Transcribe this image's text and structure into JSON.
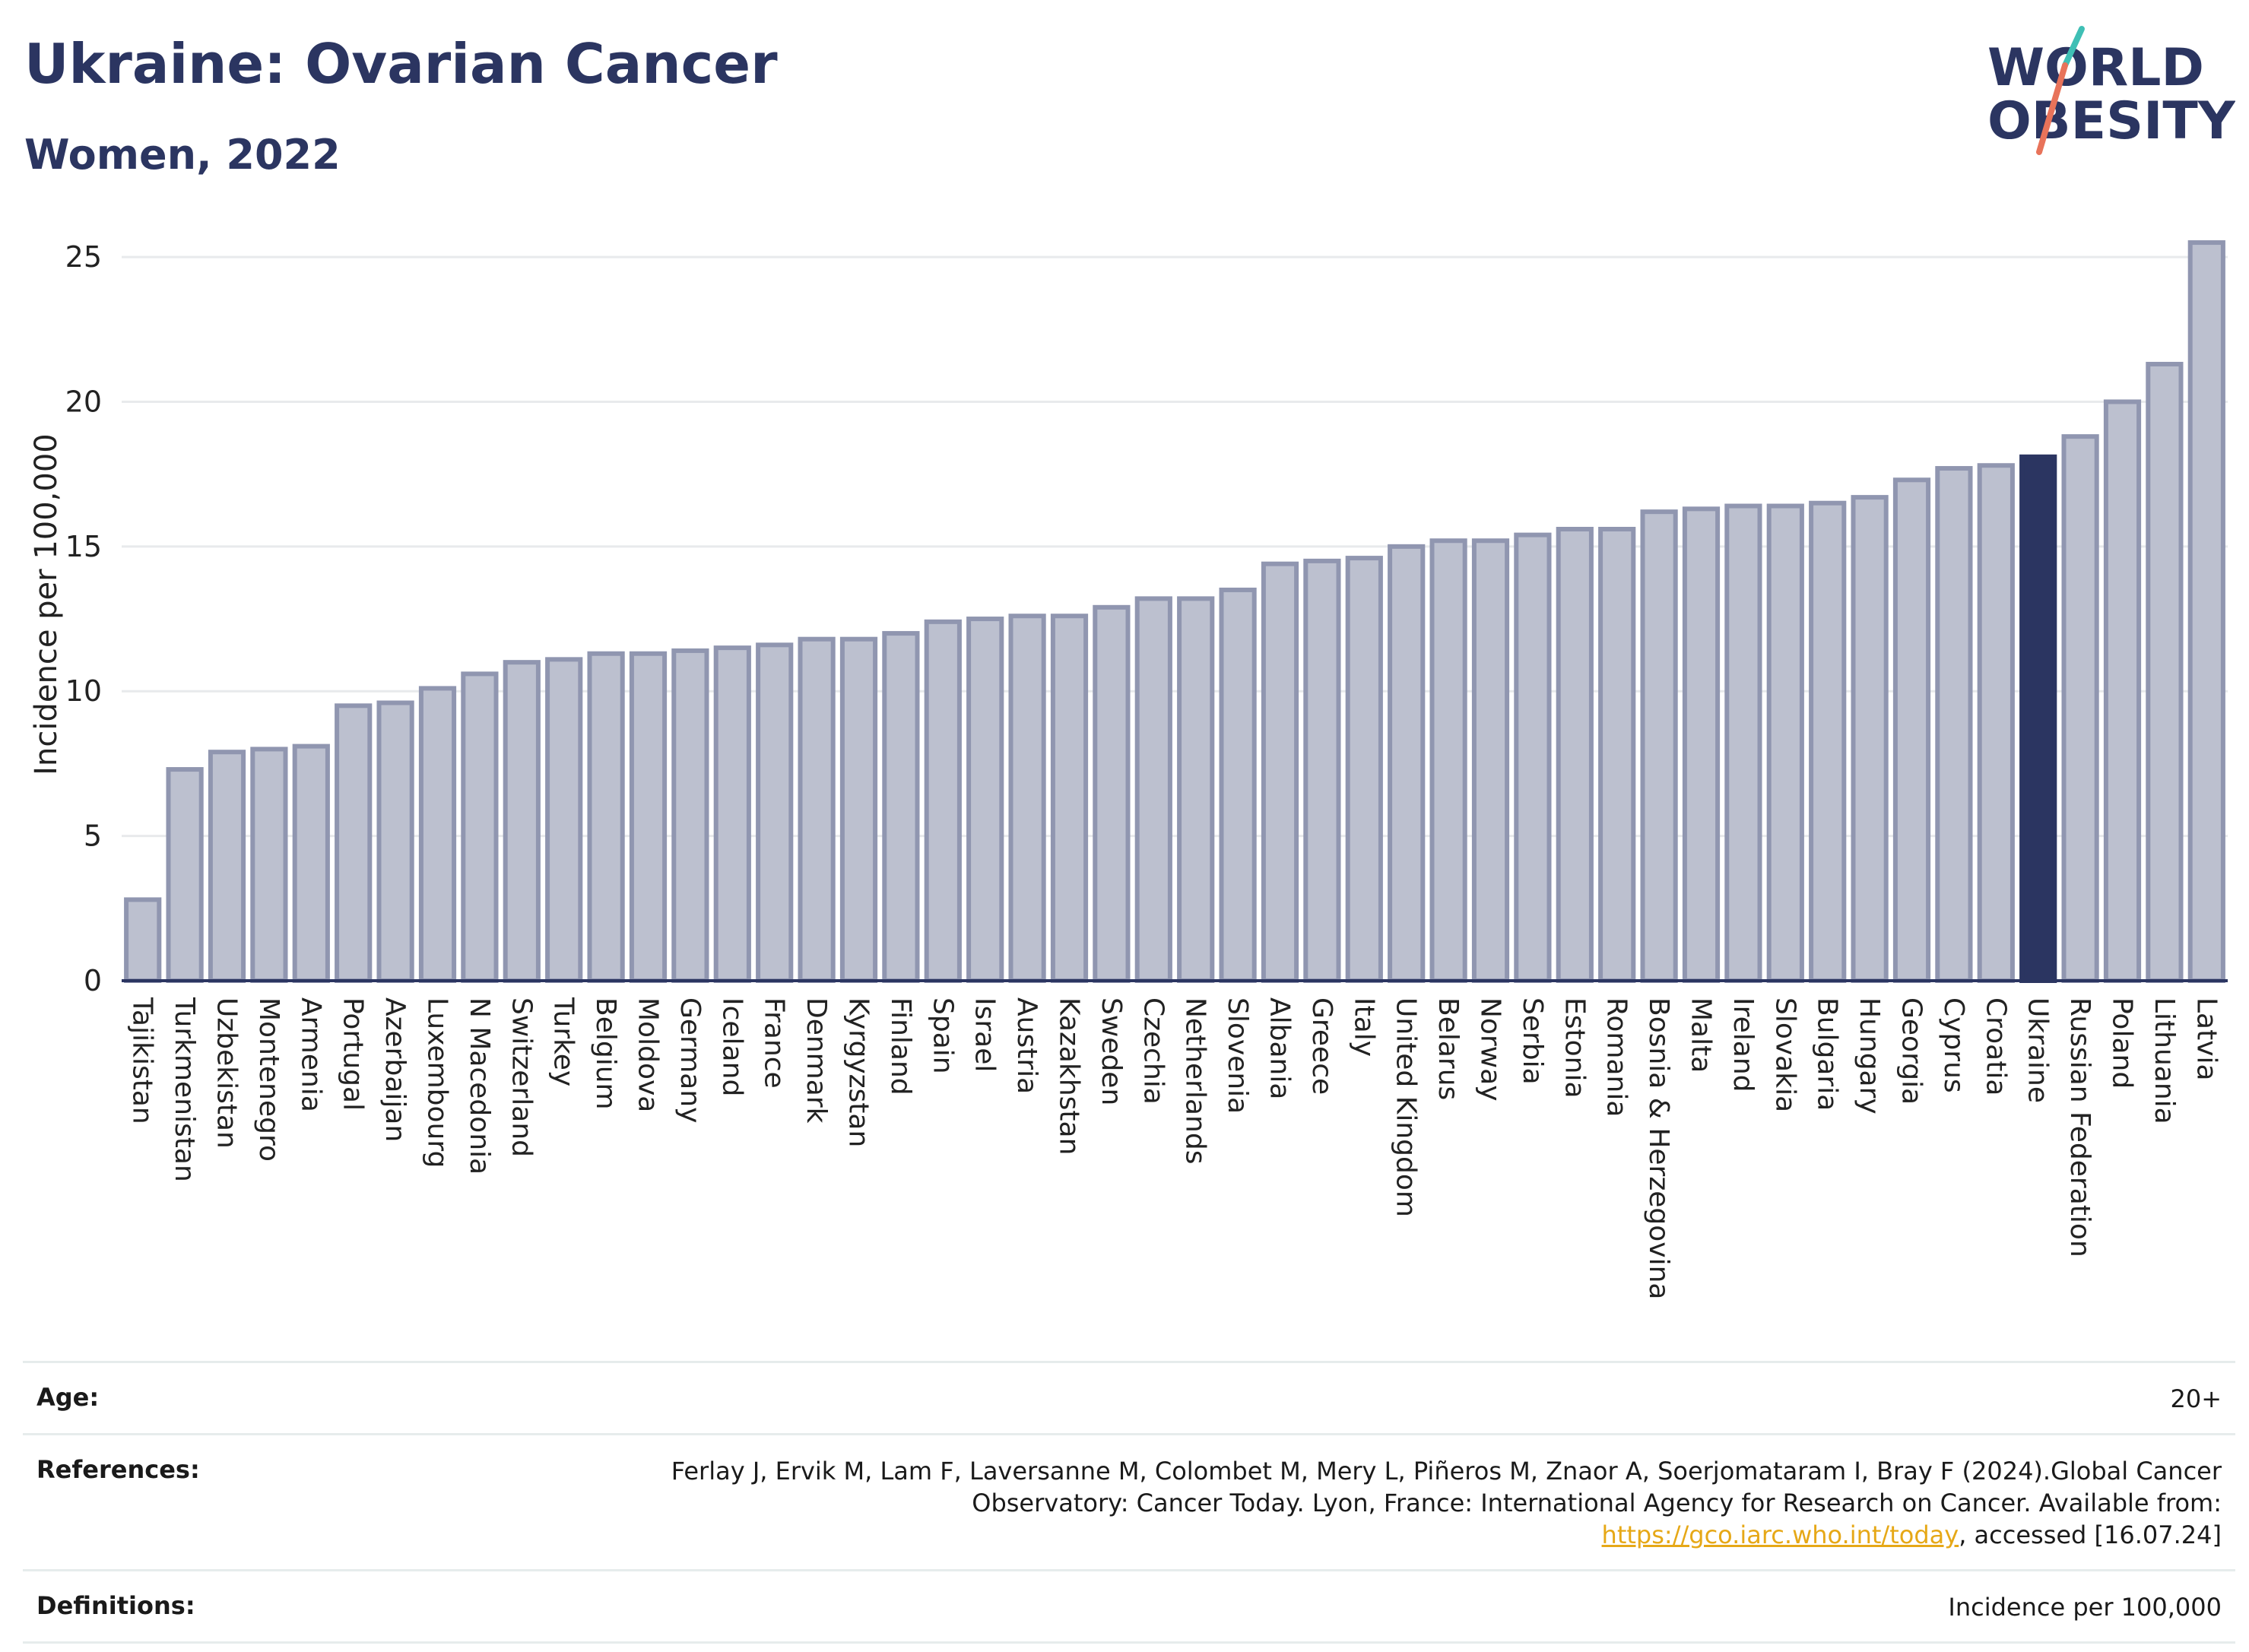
{
  "header": {
    "title": "Ukraine: Ovarian Cancer",
    "subtitle": "Women, 2022"
  },
  "logo": {
    "line1": "WORLD",
    "line2": "OBESITY"
  },
  "chart_data": {
    "type": "bar",
    "ylabel": "Incidence per 100,000",
    "ylim": [
      0,
      26
    ],
    "yticks": [
      0,
      5,
      10,
      15,
      20,
      25
    ],
    "grid": true,
    "highlight": "Ukraine",
    "colors": {
      "bar": "#bcc0cf",
      "bar_edge": "#9096b0",
      "highlight": "#2b3561"
    },
    "categories": [
      "Tajikistan",
      "Turkmenistan",
      "Uzbekistan",
      "Montenegro",
      "Armenia",
      "Portugal",
      "Azerbaijan",
      "Luxembourg",
      "N Macedonia",
      "Switzerland",
      "Turkey",
      "Belgium",
      "Moldova",
      "Germany",
      "Iceland",
      "France",
      "Denmark",
      "Kyrgyzstan",
      "Finland",
      "Spain",
      "Israel",
      "Austria",
      "Kazakhstan",
      "Sweden",
      "Czechia",
      "Netherlands",
      "Slovenia",
      "Albania",
      "Greece",
      "Italy",
      "United Kingdom",
      "Belarus",
      "Norway",
      "Serbia",
      "Estonia",
      "Romania",
      "Bosnia & Herzegovina",
      "Malta",
      "Ireland",
      "Slovakia",
      "Bulgaria",
      "Hungary",
      "Georgia",
      "Cyprus",
      "Croatia",
      "Ukraine",
      "Russian Federation",
      "Poland",
      "Lithuania",
      "Latvia"
    ],
    "values": [
      2.8,
      7.3,
      7.9,
      8.0,
      8.1,
      9.5,
      9.6,
      10.1,
      10.6,
      11.0,
      11.1,
      11.3,
      11.3,
      11.4,
      11.5,
      11.6,
      11.8,
      11.8,
      12.0,
      12.4,
      12.5,
      12.6,
      12.6,
      12.9,
      13.2,
      13.2,
      13.5,
      14.4,
      14.5,
      14.6,
      15.0,
      15.2,
      15.2,
      15.4,
      15.6,
      15.6,
      16.2,
      16.3,
      16.4,
      16.4,
      16.5,
      16.7,
      17.3,
      17.7,
      17.8,
      18.1,
      18.8,
      20.0,
      21.3,
      25.5
    ]
  },
  "info": {
    "age_label": "Age:",
    "age_value": "20+",
    "ref_label": "References:",
    "ref_text_1": "Ferlay J, Ervik M, Lam F, Laversanne M, Colombet M, Mery L, Piñeros M, Znaor A, Soerjomataram I, Bray F (2024).Global Cancer Observatory: Cancer Today. Lyon, France: International Agency for Research on Cancer. Available from: ",
    "ref_link": "https://gco.iarc.who.int/today",
    "ref_text_2": ", accessed [16.07.24]",
    "def_label": "Definitions:",
    "def_value": "Incidence per 100,000"
  }
}
